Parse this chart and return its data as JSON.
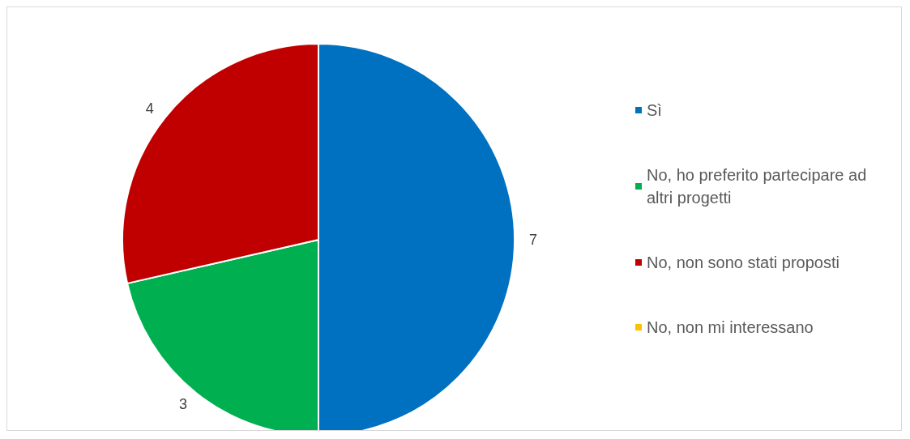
{
  "chart_data": {
    "type": "pie",
    "categories": [
      "Sì",
      "No, ho preferito partecipare ad altri progetti",
      "No, non sono stati proposti",
      "No, non mi interessano"
    ],
    "values": [
      7,
      3,
      4,
      0
    ],
    "colors": [
      "#0070c0",
      "#00b050",
      "#c00000",
      "#ffc000"
    ],
    "value_labels": [
      "7",
      "3",
      "4",
      null
    ],
    "legend": "right"
  }
}
